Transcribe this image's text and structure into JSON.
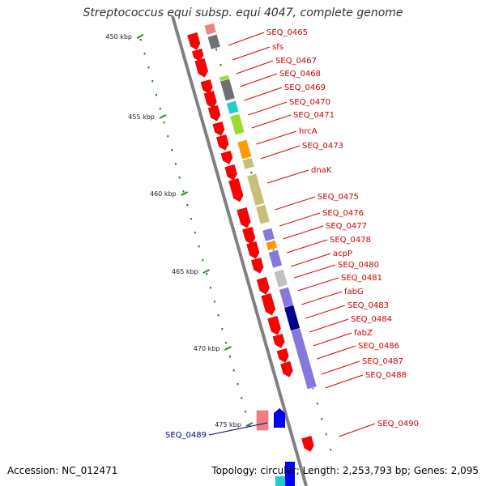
{
  "title": "Streptococcus equi subsp. equi 4047, complete genome",
  "accession": "Accession: NC_012471",
  "stats": "Topology: circular; Length: 2,253,793 bp; Genes: 2,095",
  "colors": {
    "forward_gene": "#ff0000",
    "reverse_gene": "#0000ff",
    "label_forward": "#cc0000",
    "label_reverse": "#000099",
    "backbone": "#808080",
    "tick": "#228B22",
    "cog_olive": "#c8c078",
    "cog_purple": "#8878dd",
    "cog_gray": "#707070",
    "cog_orange": "#ff9a00",
    "cog_cyan": "#22cccc",
    "cog_lime": "#99dd33",
    "cog_navy": "#000088",
    "cog_pink": "#f08080",
    "cog_silver": "#c0c0c0"
  },
  "scale_ticks": [
    "450 kbp",
    "455 kbp",
    "460 kbp",
    "465 kbp",
    "470 kbp",
    "475 kbp"
  ],
  "gene_labels": [
    "SEQ_0465",
    "sfs",
    "SEQ_0467",
    "SEQ_0468",
    "SEQ_0469",
    "SEQ_0470",
    "SEQ_0471",
    "hrcA",
    "SEQ_0473",
    "dnaK",
    "SEQ_0475",
    "SEQ_0476",
    "SEQ_0477",
    "SEQ_0478",
    "acpP",
    "SEQ_0480",
    "SEQ_0481",
    "fabG",
    "SEQ_0483",
    "SEQ_0484",
    "fabZ",
    "SEQ_0486",
    "SEQ_0487",
    "SEQ_0488",
    "SEQ_0490"
  ],
  "reverse_gene_labels": [
    "SEQ_0489"
  ]
}
